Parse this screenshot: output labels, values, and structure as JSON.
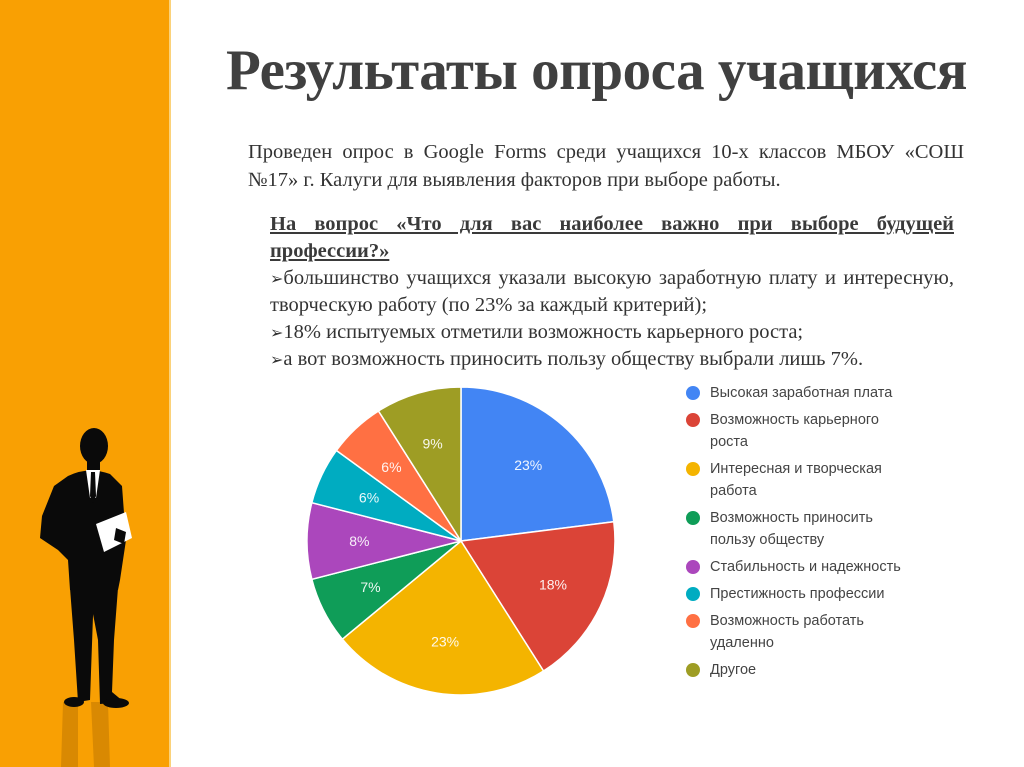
{
  "slide": {
    "title": "Результаты опроса учащихся",
    "intro": "Проведен опрос в Google Forms среди учащихся 10-х классов МБОУ «СОШ №17» г. Калуги для выявления факторов при выборе работы.",
    "question": "На вопрос «Что для вас наиболее важно при выборе будущей профессии?»",
    "bullets": [
      "большинство учащихся указали высокую заработную плату и интересную, творческую работу (по 23% за каждый критерий);",
      "18% испытуемых отметили возможность карьерного роста;",
      "а вот возможность приносить пользу обществу выбрали лишь 7%."
    ],
    "bullet_marker": "➢",
    "accent_color": "#F9A003"
  },
  "chart_data": {
    "type": "pie",
    "title": "",
    "start_angle": "12 o'clock, clockwise",
    "legend_position": "right",
    "categories": [
      "Высокая заработная плата",
      "Возможность карьерного роста",
      "Интересная и творческая работа",
      "Возможность приносить пользу обществу",
      "Стабильность и надежность",
      "Престижность профессии",
      "Возможность работать удаленно",
      "Другое"
    ],
    "values": [
      23,
      18,
      23,
      7,
      8,
      6,
      6,
      9
    ],
    "labels": [
      "23%",
      "18%",
      "23%",
      "7%",
      "8%",
      "6%",
      "6%",
      "9%"
    ],
    "colors": [
      "#4285F4",
      "#DB4437",
      "#F4B400",
      "#0F9D58",
      "#AB47BC",
      "#00ACC1",
      "#FF7043",
      "#9E9D24"
    ],
    "unit": "%"
  }
}
